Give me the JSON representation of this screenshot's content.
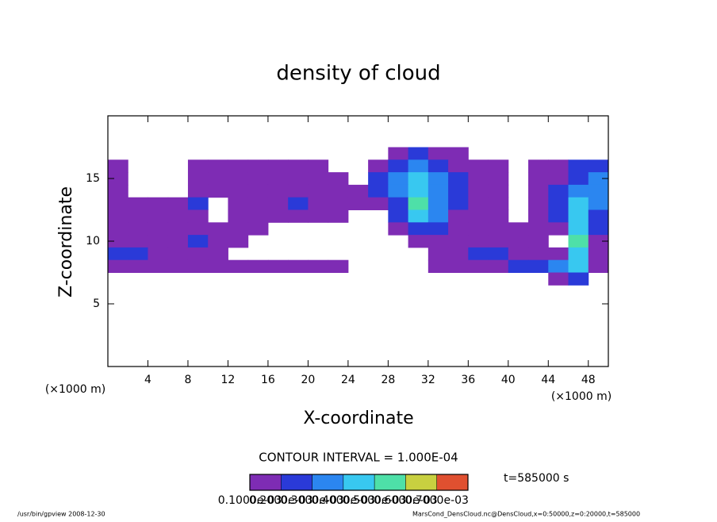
{
  "chart_data": {
    "type": "contour",
    "title": "density of cloud",
    "x_label": "X-coordinate",
    "y_label": "Z-coordinate",
    "x_unit_left": "(×1000 m)",
    "x_unit_right": "(×1000 m)",
    "contour_interval": "CONTOUR INTERVAL = 1.000E-04",
    "time_label": "t=585000 s",
    "footer_left": "/usr/bin/gpview   2008-12-30",
    "footer_right": "MarsCond_DensCloud.nc@DensCloud,x=0:50000,z=0:20000,t=585000",
    "xlim": [
      0,
      50
    ],
    "ylim": [
      0,
      20
    ],
    "xticks": [
      4,
      8,
      12,
      16,
      20,
      24,
      28,
      32,
      36,
      40,
      44,
      48
    ],
    "yticks": [
      5,
      10,
      15
    ],
    "x": [
      1,
      3,
      5,
      7,
      9,
      11,
      13,
      15,
      17,
      19,
      21,
      23,
      25,
      27,
      29,
      31,
      33,
      35,
      37,
      39,
      41,
      43,
      45,
      47,
      49
    ],
    "z": [
      17,
      16,
      15,
      14,
      13,
      12,
      11,
      10,
      9,
      8,
      7
    ],
    "values": [
      [
        0,
        0,
        0,
        0,
        0,
        0,
        0,
        0,
        0,
        0,
        0,
        0,
        0,
        0,
        0.00015,
        0.00025,
        0.00015,
        0.00015,
        0,
        0,
        0,
        0,
        0,
        0,
        0
      ],
      [
        0.00015,
        0,
        0,
        0,
        0.00015,
        0.00015,
        0.00015,
        0.00015,
        0.00015,
        0.00015,
        0.00015,
        0,
        0,
        0.00015,
        0.00025,
        0.00035,
        0.00025,
        0.00015,
        0.00015,
        0.00015,
        0,
        0.00015,
        0.00015,
        0.00025,
        0.00025
      ],
      [
        0.00015,
        0,
        0,
        0,
        0.00015,
        0.00015,
        0.00015,
        0.00015,
        0.00015,
        0.00015,
        0.00015,
        0.00015,
        0,
        0.00025,
        0.00035,
        0.00045,
        0.00035,
        0.00025,
        0.00015,
        0.00015,
        0,
        0.00015,
        0.00015,
        0.00025,
        0.00035
      ],
      [
        0.00015,
        0,
        0,
        0,
        0.00015,
        0.00015,
        0.00015,
        0.00015,
        0.00015,
        0.00015,
        0.00015,
        0.00015,
        0.00015,
        0.00025,
        0.00035,
        0.00045,
        0.00035,
        0.00025,
        0.00015,
        0.00015,
        0,
        0.00015,
        0.00025,
        0.00035,
        0.00035
      ],
      [
        0.00015,
        0.00015,
        0.00015,
        0.00015,
        0.00025,
        0,
        0.00015,
        0.00015,
        0.00015,
        0.00025,
        0.00015,
        0.00015,
        0.00015,
        0.00015,
        0.00025,
        0.00055,
        0.00035,
        0.00025,
        0.00015,
        0.00015,
        0,
        0.00015,
        0.00025,
        0.00045,
        0.00035
      ],
      [
        0.00015,
        0.00015,
        0.00015,
        0.00015,
        0.00015,
        0,
        0.00015,
        0.00015,
        0.00015,
        0.00015,
        0.00015,
        0.00015,
        0,
        0,
        0.00025,
        0.00045,
        0.00035,
        0.00015,
        0.00015,
        0.00015,
        0,
        0.00015,
        0.00025,
        0.00045,
        0.00025
      ],
      [
        0.00015,
        0.00015,
        0.00015,
        0.00015,
        0.00015,
        0.00015,
        0.00015,
        0.00015,
        0,
        0,
        0,
        0,
        0,
        0,
        0.00015,
        0.00025,
        0.00025,
        0.00015,
        0.00015,
        0.00015,
        0.00015,
        0.00015,
        0.00015,
        0.00045,
        0.00025
      ],
      [
        0.00015,
        0.00015,
        0.00015,
        0.00015,
        0.00025,
        0.00015,
        0.00015,
        0,
        0,
        0,
        0,
        0,
        0,
        0,
        0,
        0.00015,
        0.00015,
        0.00015,
        0.00015,
        0.00015,
        0.00015,
        0.00015,
        0,
        0.00055,
        0.00015
      ],
      [
        0.00025,
        0.00025,
        0.00015,
        0.00015,
        0.00015,
        0.00015,
        0,
        0,
        0,
        0,
        0,
        0,
        0,
        0,
        0,
        0,
        0.00015,
        0.00015,
        0.00025,
        0.00025,
        0.00015,
        0.00015,
        0.00015,
        0.00045,
        0.00015
      ],
      [
        0.00015,
        0.00015,
        0.00015,
        0.00015,
        0.00015,
        0.00015,
        0.00015,
        0.00015,
        0.00015,
        0.00015,
        0.00015,
        0.00015,
        0,
        0,
        0,
        0,
        0.00015,
        0.00015,
        0.00015,
        0.00015,
        0.00025,
        0.00025,
        0.00035,
        0.00045,
        0.00015
      ],
      [
        0,
        0,
        0,
        0,
        0,
        0,
        0,
        0,
        0,
        0,
        0,
        0,
        0,
        0,
        0,
        0,
        0,
        0,
        0,
        0,
        0,
        0,
        0.00015,
        0.00025,
        0
      ]
    ],
    "levels": [
      {
        "value": 0.0001,
        "label": "0.1000e-03"
      },
      {
        "value": 0.0002,
        "label": "0.2000e-03"
      },
      {
        "value": 0.0003,
        "label": "0.3000e-03"
      },
      {
        "value": 0.0004,
        "label": "0.4000e-03"
      },
      {
        "value": 0.0005,
        "label": "0.5000e-03"
      },
      {
        "value": 0.0006,
        "label": "0.6000e-03"
      },
      {
        "value": 0.0007,
        "label": "0.7000e-03"
      }
    ],
    "colors": [
      "#7e2cb4",
      "#2a3ad8",
      "#2b86f0",
      "#38c8f0",
      "#4ee0a8",
      "#c8d040",
      "#e05030"
    ]
  }
}
